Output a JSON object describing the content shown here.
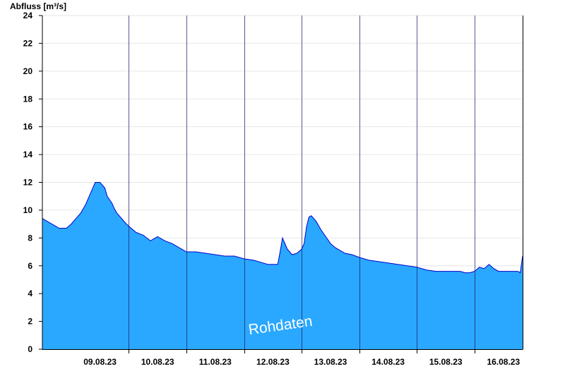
{
  "chart_data": {
    "type": "area",
    "title": "",
    "ylabel": "Abfluss [m³/s]",
    "xlabel": "",
    "ylim": [
      0,
      24
    ],
    "yticks": [
      0,
      2,
      4,
      6,
      8,
      10,
      12,
      14,
      16,
      18,
      20,
      22,
      24
    ],
    "xlim": [
      "08.08.23 12:00",
      "16.08.23 20:00"
    ],
    "date_labels": [
      "09.08.23",
      "10.08.23",
      "11.08.23",
      "12.08.23",
      "13.08.23",
      "14.08.23",
      "15.08.23",
      "16.08.23"
    ],
    "day_boundaries": [
      "10.08.23 00:00",
      "11.08.23 00:00",
      "12.08.23 00:00",
      "13.08.23 00:00",
      "14.08.23 00:00",
      "15.08.23 00:00",
      "16.08.23 00:00"
    ],
    "grid": "horizontal",
    "annotation": "Rohdaten",
    "colors": {
      "fill": "#2aa8ff",
      "line": "#0000cc",
      "grid": "#e6e6e6"
    },
    "series": [
      {
        "x": [
          "08.08.23 12:00",
          "08.08.23 13:00",
          "08.08.23 15:00",
          "08.08.23 17:00",
          "08.08.23 19:00",
          "08.08.23 22:00",
          "09.08.23 00:00",
          "09.08.23 02:00",
          "09.08.23 04:00",
          "09.08.23 06:00",
          "09.08.23 08:00",
          "09.08.23 10:00",
          "09.08.23 12:00",
          "09.08.23 14:00",
          "09.08.23 15:00",
          "09.08.23 17:00",
          "09.08.23 18:00",
          "09.08.23 19:00",
          "09.08.23 21:00",
          "09.08.23 23:00",
          "10.08.23 01:00",
          "10.08.23 03:00",
          "10.08.23 06:00",
          "10.08.23 09:00",
          "10.08.23 12:00",
          "10.08.23 15:00",
          "10.08.23 18:00",
          "10.08.23 20:00",
          "10.08.23 22:00",
          "11.08.23 00:00",
          "11.08.23 04:00",
          "11.08.23 08:00",
          "11.08.23 12:00",
          "11.08.23 16:00",
          "11.08.23 20:00",
          "12.08.23 00:00",
          "12.08.23 04:00",
          "12.08.23 08:00",
          "12.08.23 10:00",
          "12.08.23 14:00",
          "12.08.23 15:00",
          "12.08.23 16:00",
          "12.08.23 18:00",
          "12.08.23 20:00",
          "12.08.23 22:00",
          "13.08.23 00:00",
          "13.08.23 01:00",
          "13.08.23 02:00",
          "13.08.23 03:00",
          "13.08.23 04:00",
          "13.08.23 06:00",
          "13.08.23 08:00",
          "13.08.23 10:00",
          "13.08.23 12:00",
          "13.08.23 14:00",
          "13.08.23 16:00",
          "13.08.23 18:00",
          "13.08.23 21:00",
          "14.08.23 00:00",
          "14.08.23 04:00",
          "14.08.23 08:00",
          "14.08.23 12:00",
          "14.08.23 16:00",
          "14.08.23 20:00",
          "15.08.23 00:00",
          "15.08.23 04:00",
          "15.08.23 08:00",
          "15.08.23 14:00",
          "15.08.23 18:00",
          "15.08.23 20:00",
          "15.08.23 22:00",
          "16.08.23 00:00",
          "16.08.23 02:00",
          "16.08.23 04:00",
          "16.08.23 06:00",
          "16.08.23 08:00",
          "16.08.23 10:00",
          "16.08.23 14:00",
          "16.08.23 18:00",
          "16.08.23 19:00",
          "16.08.23 20:00"
        ],
        "y": [
          9.4,
          9.3,
          9.1,
          8.9,
          8.7,
          8.7,
          9.0,
          9.4,
          9.8,
          10.4,
          11.2,
          12.0,
          12.0,
          11.6,
          11.0,
          10.5,
          10.1,
          9.8,
          9.4,
          9.0,
          8.7,
          8.4,
          8.2,
          7.8,
          8.1,
          7.8,
          7.6,
          7.4,
          7.2,
          7.0,
          7.0,
          6.9,
          6.8,
          6.7,
          6.7,
          6.5,
          6.4,
          6.2,
          6.1,
          6.1,
          7.0,
          8.0,
          7.2,
          6.8,
          6.9,
          7.2,
          7.6,
          8.8,
          9.5,
          9.6,
          9.2,
          8.6,
          8.1,
          7.6,
          7.3,
          7.1,
          6.9,
          6.8,
          6.6,
          6.4,
          6.3,
          6.2,
          6.1,
          6.0,
          5.9,
          5.7,
          5.6,
          5.6,
          5.6,
          5.5,
          5.5,
          5.6,
          5.9,
          5.8,
          6.1,
          5.8,
          5.6,
          5.6,
          5.6,
          5.5,
          6.7
        ]
      }
    ]
  }
}
